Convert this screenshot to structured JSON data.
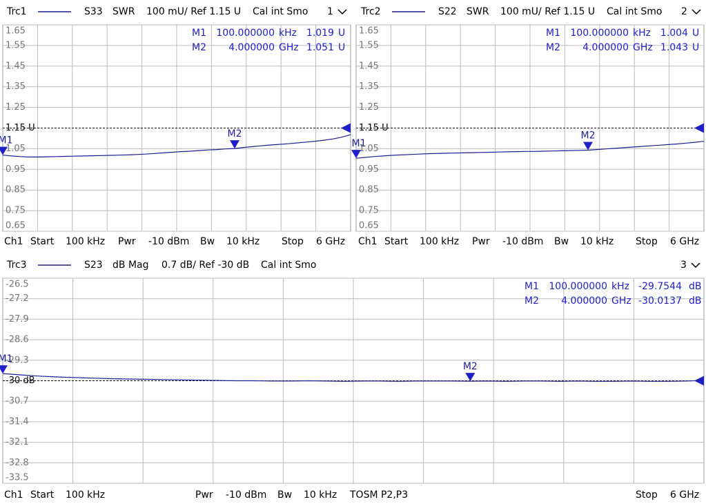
{
  "chart_data": [
    {
      "type": "line",
      "parameter": "S33",
      "format": "SWR",
      "scale": "100 mU/ Ref 1.15 U",
      "calibration": "Cal int Smo",
      "window": "1",
      "ylim": [
        0.65,
        1.65
      ],
      "yticks": [
        1.65,
        1.55,
        1.45,
        1.35,
        1.25,
        {
          "value": 1.15,
          "label": "1.15 U"
        },
        1.05,
        0.95,
        0.85,
        0.75,
        0.65
      ],
      "series": [
        {
          "name": "Trc1",
          "color": "#1c1c96",
          "values": [
            1.019,
            1.015,
            1.012,
            1.01,
            1.01,
            1.011,
            1.012,
            1.013,
            1.014,
            1.015,
            1.016,
            1.017,
            1.018,
            1.019,
            1.02,
            1.022,
            1.024,
            1.027,
            1.03,
            1.033,
            1.036,
            1.038,
            1.041,
            1.044,
            1.046,
            1.049,
            1.051,
            1.056,
            1.06,
            1.064,
            1.068,
            1.071,
            1.074,
            1.078,
            1.082,
            1.086,
            1.091,
            1.097,
            1.106,
            1.118
          ]
        }
      ],
      "markers": [
        {
          "name": "M1",
          "stimulus": "100.000000",
          "stimulus_unit": "kHz",
          "value": 1.019,
          "unit": "U"
        },
        {
          "name": "M2",
          "stimulus": "4.000000",
          "stimulus_unit": "GHz",
          "value": 1.051,
          "unit": "U"
        }
      ],
      "footer": [
        "Ch1",
        "Start",
        "100 kHz",
        "Pwr",
        "-10 dBm",
        "Bw",
        "10 kHz",
        "Stop",
        "6 GHz"
      ]
    },
    {
      "type": "line",
      "parameter": "S22",
      "format": "SWR",
      "scale": "100 mU/ Ref 1.15 U",
      "calibration": "Cal int Smo",
      "window": "2",
      "ylim": [
        0.65,
        1.65
      ],
      "yticks": [
        1.65,
        1.55,
        1.45,
        1.35,
        1.25,
        {
          "value": 1.15,
          "label": "1.15 U"
        },
        1.05,
        0.95,
        0.85,
        0.75,
        0.65
      ],
      "series": [
        {
          "name": "Trc2",
          "color": "#1c1c96",
          "values": [
            1.004,
            1.008,
            1.012,
            1.015,
            1.018,
            1.02,
            1.022,
            1.024,
            1.026,
            1.027,
            1.028,
            1.029,
            1.03,
            1.031,
            1.032,
            1.033,
            1.034,
            1.035,
            1.036,
            1.037,
            1.037,
            1.038,
            1.039,
            1.04,
            1.041,
            1.042,
            1.043,
            1.046,
            1.049,
            1.052,
            1.055,
            1.058,
            1.061,
            1.064,
            1.067,
            1.07,
            1.073,
            1.077,
            1.081,
            1.086
          ]
        }
      ],
      "markers": [
        {
          "name": "M1",
          "stimulus": "100.000000",
          "stimulus_unit": "kHz",
          "value": 1.004,
          "unit": "U"
        },
        {
          "name": "M2",
          "stimulus": "4.000000",
          "stimulus_unit": "GHz",
          "value": 1.043,
          "unit": "U"
        }
      ],
      "footer": [
        "Ch1",
        "Start",
        "100 kHz",
        "Pwr",
        "-10 dBm",
        "Bw",
        "10 kHz",
        "Stop",
        "6 GHz"
      ]
    },
    {
      "type": "line",
      "parameter": "S23",
      "format": "dB Mag",
      "scale": "0.7 dB/ Ref -30 dB",
      "calibration": "Cal int Smo",
      "window": "3",
      "ylim": [
        -33.5,
        -26.5
      ],
      "yticks": [
        -26.5,
        -27.2,
        -27.9,
        -28.6,
        -29.3,
        {
          "value": -30,
          "label": "-30 dB"
        },
        -30.7,
        -31.4,
        -32.1,
        -32.8,
        -33.5
      ],
      "series": [
        {
          "name": "Trc3",
          "color": "#1c1c96",
          "values": [
            -29.7544,
            -29.8,
            -29.84,
            -29.87,
            -29.89,
            -29.91,
            -29.93,
            -29.94,
            -29.95,
            -29.96,
            -29.97,
            -29.98,
            -29.99,
            -30.0,
            -30.0,
            -30.01,
            -30.01,
            -30.0,
            -30.01,
            -30.02,
            -30.01,
            -30.01,
            -30.02,
            -30.01,
            -30.01,
            -30.01,
            -30.0137,
            -30.01,
            -30.02,
            -30.01,
            -30.01,
            -30.02,
            -30.01,
            -30.02,
            -30.02,
            -30.01,
            -30.02,
            -30.02,
            -30.01,
            -29.99
          ]
        }
      ],
      "markers": [
        {
          "name": "M1",
          "stimulus": "100.000000",
          "stimulus_unit": "kHz",
          "value": -29.7544,
          "unit": "dB"
        },
        {
          "name": "M2",
          "stimulus": "4.000000",
          "stimulus_unit": "GHz",
          "value": -30.0137,
          "unit": "dB"
        }
      ],
      "footer": [
        "Ch1",
        "Start",
        "100 kHz",
        "Pwr",
        "-10 dBm",
        "Bw",
        "10 kHz",
        "TOSM P2,P3",
        "Stop",
        "6 GHz"
      ]
    }
  ]
}
